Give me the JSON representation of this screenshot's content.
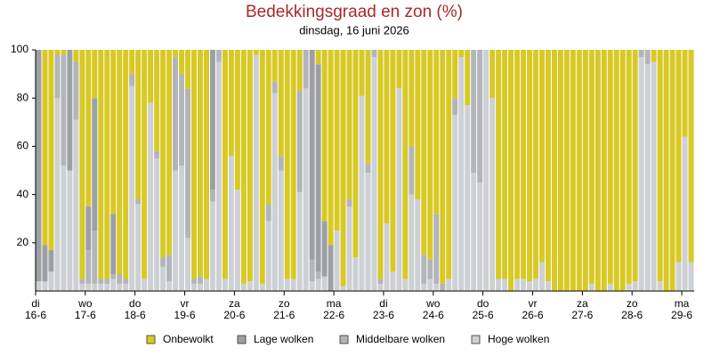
{
  "chart_data": {
    "type": "stacked_bar",
    "title": "Bedekkingsgraad en zon (%)",
    "subtitle": "dinsdag, 16 juni 2026",
    "ylim": [
      0,
      100
    ],
    "yticks": [
      20,
      40,
      60,
      80,
      100
    ],
    "categories": [
      {
        "day": "di",
        "date": "16-6"
      },
      null,
      null,
      null,
      null,
      null,
      null,
      null,
      {
        "day": "wo",
        "date": "17-6"
      },
      null,
      null,
      null,
      null,
      null,
      null,
      null,
      {
        "day": "do",
        "date": "18-6"
      },
      null,
      null,
      null,
      null,
      null,
      null,
      null,
      {
        "day": "vr",
        "date": "19-6"
      },
      null,
      null,
      null,
      null,
      null,
      null,
      null,
      {
        "day": "za",
        "date": "20-6"
      },
      null,
      null,
      null,
      null,
      null,
      null,
      null,
      {
        "day": "zo",
        "date": "21-6"
      },
      null,
      null,
      null,
      null,
      null,
      null,
      null,
      {
        "day": "ma",
        "date": "22-6"
      },
      null,
      null,
      null,
      null,
      null,
      null,
      null,
      {
        "day": "di",
        "date": "23-6"
      },
      null,
      null,
      null,
      null,
      null,
      null,
      null,
      {
        "day": "wo",
        "date": "24-6"
      },
      null,
      null,
      null,
      null,
      null,
      null,
      null,
      {
        "day": "do",
        "date": "25-6"
      },
      null,
      null,
      null,
      null,
      null,
      null,
      null,
      {
        "day": "vr",
        "date": "26-6"
      },
      null,
      null,
      null,
      null,
      null,
      null,
      null,
      {
        "day": "za",
        "date": "27-6"
      },
      null,
      null,
      null,
      null,
      null,
      null,
      null,
      {
        "day": "zo",
        "date": "28-6"
      },
      null,
      null,
      null,
      null,
      null,
      null,
      null,
      {
        "day": "ma",
        "date": "29-6"
      },
      null
    ],
    "series": [
      {
        "name": "Onbewolkt",
        "color": "#d8c925",
        "values": [
          0,
          81,
          83,
          2,
          2,
          0,
          5,
          95,
          65,
          20,
          95,
          95,
          68,
          93,
          95,
          10,
          62,
          95,
          22,
          42,
          86,
          85,
          3,
          10,
          16,
          95,
          94,
          95,
          0,
          0,
          95,
          44,
          58,
          97,
          96,
          2,
          97,
          64,
          13,
          44,
          95,
          95,
          17,
          0,
          0,
          6,
          71,
          81,
          75,
          98,
          62,
          86,
          19,
          47,
          0,
          95,
          72,
          92,
          16,
          95,
          40,
          62,
          85,
          87,
          68,
          97,
          95,
          20,
          3,
          23,
          0,
          0,
          0,
          20,
          95,
          95,
          100,
          95,
          95,
          96,
          95,
          88,
          96,
          100,
          100,
          100,
          100,
          100,
          100,
          97,
          100,
          100,
          97,
          100,
          100,
          97,
          96,
          0,
          0,
          5,
          96,
          100,
          100,
          88,
          36,
          88
        ]
      },
      {
        "name": "Lage wolken",
        "color": "#9c9fa4",
        "values": [
          96,
          15,
          9,
          0,
          0,
          50,
          0,
          0,
          18,
          55,
          0,
          0,
          25,
          0,
          0,
          0,
          0,
          0,
          0,
          0,
          0,
          0,
          0,
          0,
          0,
          0,
          0,
          0,
          58,
          0,
          0,
          0,
          0,
          0,
          0,
          0,
          0,
          0,
          0,
          0,
          0,
          0,
          0,
          0,
          87,
          86,
          23,
          19,
          0,
          0,
          0,
          0,
          0,
          0,
          0,
          0,
          0,
          0,
          0,
          0,
          0,
          0,
          0,
          0,
          0,
          0,
          0,
          0,
          0,
          0,
          0,
          0,
          0,
          0,
          0,
          0,
          0,
          0,
          0,
          0,
          0,
          0,
          0,
          0,
          0,
          0,
          0,
          0,
          0,
          0,
          0,
          0,
          0,
          0,
          0,
          0,
          0,
          0,
          0,
          0,
          0,
          0,
          0,
          0,
          0,
          0
        ]
      },
      {
        "name": "Middelbare wolken",
        "color": "#b2b5b9",
        "values": [
          0,
          0,
          0,
          18,
          46,
          0,
          24,
          2,
          14,
          22,
          2,
          2,
          2,
          4,
          2,
          5,
          2,
          0,
          0,
          3,
          4,
          11,
          47,
          38,
          62,
          2,
          3,
          0,
          5,
          5,
          0,
          0,
          0,
          0,
          0,
          0,
          0,
          7,
          5,
          6,
          0,
          0,
          42,
          16,
          9,
          3,
          0,
          0,
          0,
          0,
          3,
          0,
          0,
          4,
          3,
          2,
          0,
          0,
          0,
          0,
          20,
          0,
          12,
          8,
          29,
          3,
          0,
          7,
          0,
          0,
          51,
          55,
          0,
          0,
          0,
          0,
          0,
          0,
          0,
          0,
          0,
          0,
          0,
          0,
          0,
          0,
          0,
          0,
          0,
          0,
          0,
          0,
          0,
          0,
          0,
          0,
          0,
          3,
          6,
          0,
          0,
          0,
          0,
          0,
          0,
          0
        ]
      },
      {
        "name": "Hoge wolken",
        "color": "#cdd0d4",
        "values": [
          4,
          4,
          8,
          80,
          52,
          50,
          71,
          3,
          3,
          3,
          3,
          3,
          5,
          3,
          3,
          85,
          36,
          5,
          78,
          55,
          10,
          4,
          50,
          52,
          22,
          3,
          3,
          5,
          37,
          95,
          5,
          56,
          42,
          3,
          4,
          98,
          3,
          29,
          82,
          50,
          5,
          5,
          41,
          84,
          4,
          5,
          6,
          0,
          25,
          2,
          35,
          14,
          81,
          49,
          97,
          3,
          28,
          8,
          84,
          5,
          40,
          38,
          3,
          5,
          3,
          0,
          5,
          73,
          97,
          77,
          49,
          45,
          100,
          80,
          5,
          5,
          0,
          5,
          5,
          4,
          5,
          12,
          4,
          0,
          0,
          0,
          0,
          0,
          0,
          3,
          0,
          0,
          3,
          0,
          0,
          3,
          4,
          97,
          94,
          95,
          4,
          0,
          0,
          12,
          64,
          12
        ]
      }
    ]
  }
}
